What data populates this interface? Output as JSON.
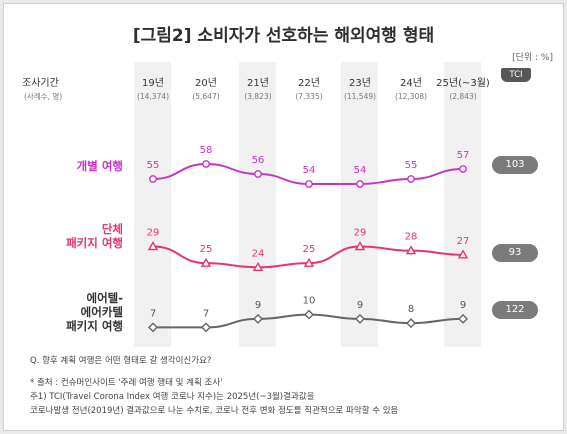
{
  "title": "[그림2] 소비자가 선호하는 해외여행 형태",
  "unit": "[단위 : %]",
  "header": {
    "row_label": "조사기간",
    "sub_label": "(사례수, 명)",
    "tci": "TCI"
  },
  "chart_data": {
    "type": "line",
    "categories": [
      "19년",
      "20년",
      "21년",
      "22년",
      "23년",
      "24년",
      "25년(~3월)"
    ],
    "sample_sizes": [
      "(14,374)",
      "(5,647)",
      "(3,823)",
      "(7,335)",
      "(11,549)",
      "(12,308)",
      "(2,843)"
    ],
    "series": [
      {
        "name": "개별 여행",
        "name_lines": [
          "개별 여행"
        ],
        "values": [
          55,
          58,
          56,
          54,
          54,
          55,
          57
        ],
        "tci": "103",
        "color": "#c832c8",
        "marker": "circle"
      },
      {
        "name": "단체 패키지 여행",
        "name_lines": [
          "단체",
          "패키지 여행"
        ],
        "values": [
          29,
          25,
          24,
          25,
          29,
          28,
          27
        ],
        "tci": "93",
        "color": "#e8336d",
        "marker": "triangle"
      },
      {
        "name": "에어텔-에어카텔 패키지 여행",
        "name_lines": [
          "에어텔-",
          "에어카텔",
          "패키지 여행"
        ],
        "values": [
          7,
          7,
          9,
          10,
          9,
          8,
          9
        ],
        "tci": "122",
        "color": "#666666",
        "marker": "diamond"
      }
    ]
  },
  "notes": {
    "question": "Q. 향후 계획 여행은 어떤 형태로 갈 생각이신가요?",
    "source": "* 출처 : 컨슈머인사이트 '주례 여행 행태 및 계획 조사'",
    "note1": "주1) TCI(Travel Corona Index 여행 코로나 지수)는 2025년(~3월)결과값을",
    "note2": "코로나발생 전년(2019년) 결과값으로 나눈 수치로, 코로나 전후 변화 정도를 직관적으로 파악할 수 있음"
  }
}
